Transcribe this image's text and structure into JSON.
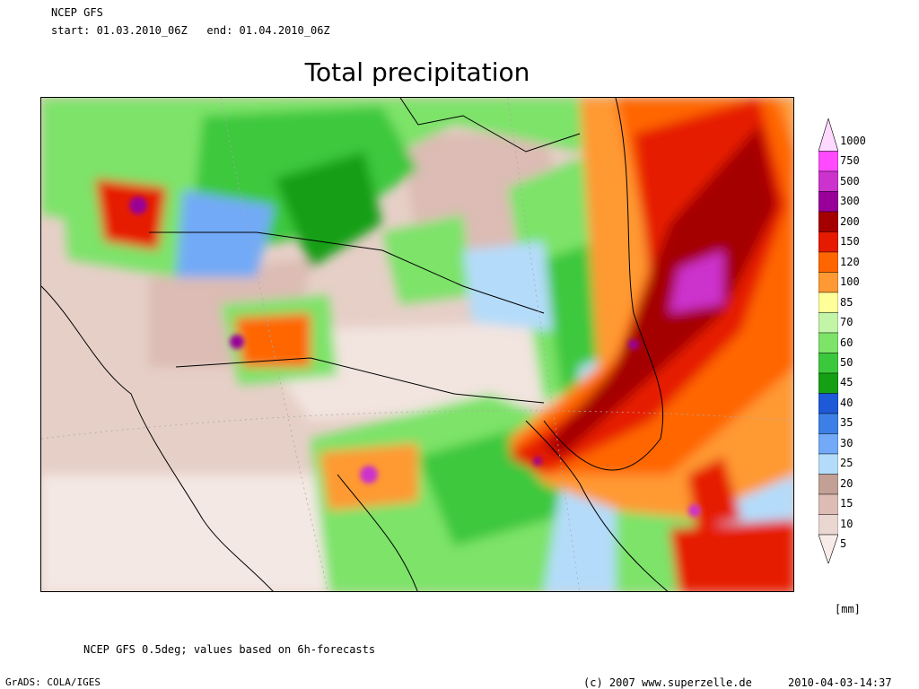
{
  "header": {
    "model": "NCEP GFS",
    "period": "start: 01.03.2010_06Z   end: 01.04.2010_06Z"
  },
  "title": "Total precipitation",
  "legend": {
    "unit": "[mm]",
    "levels": [
      "1000",
      "750",
      "500",
      "300",
      "200",
      "150",
      "120",
      "100",
      "85",
      "70",
      "60",
      "50",
      "45",
      "40",
      "35",
      "30",
      "25",
      "20",
      "15",
      "10",
      "5"
    ],
    "colors": [
      "#ffd9ff",
      "#ff4aff",
      "#cc33cc",
      "#990099",
      "#a50000",
      "#e61a00",
      "#ff6600",
      "#ff9933",
      "#ffff99",
      "#c2f5a8",
      "#7de369",
      "#3cc83c",
      "#159f15",
      "#1e59d7",
      "#3c7fe6",
      "#72aaf7",
      "#b4dcfa",
      "#c2a095",
      "#dcbcb4",
      "#ebd7d1",
      "#f7ece8"
    ]
  },
  "footer": {
    "note": "NCEP GFS 0.5deg; values based on 6h-forecasts",
    "software": "GrADS: COLA/IGES",
    "copyright": "(c) 2007 www.superzelle.de",
    "timestamp": "2010-04-03-14:37"
  }
}
